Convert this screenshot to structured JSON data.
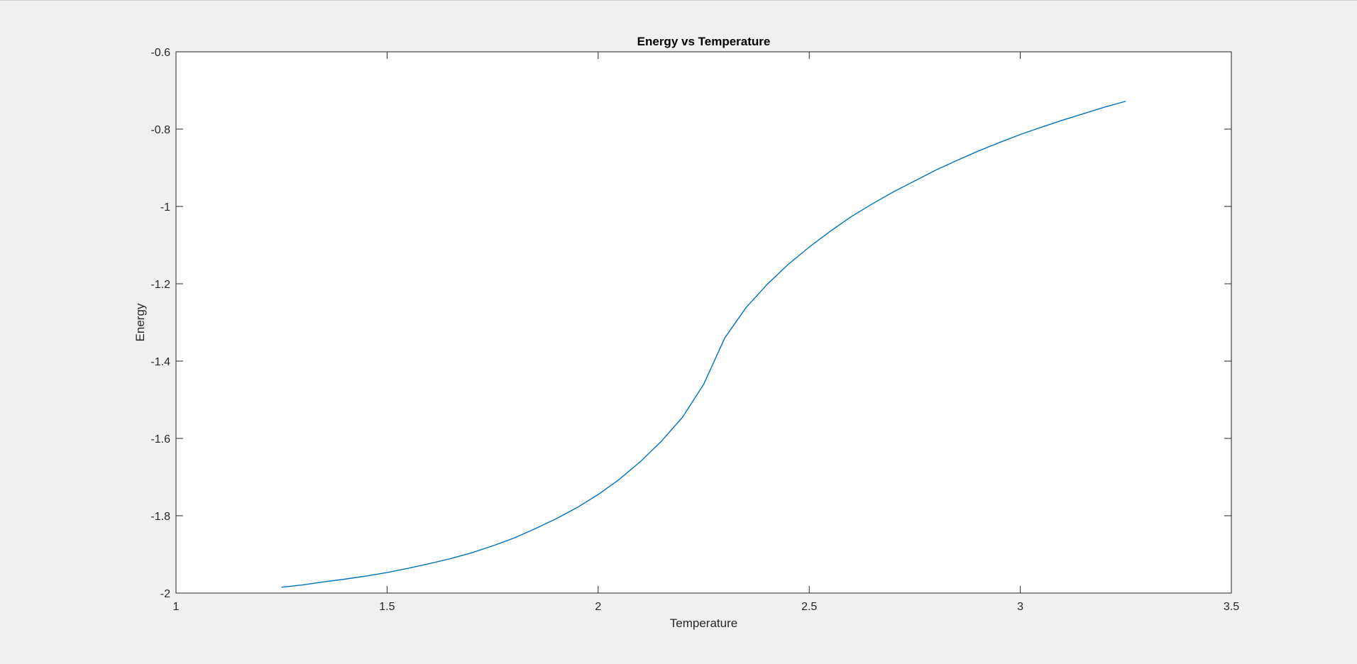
{
  "chart_data": {
    "type": "line",
    "title": "Energy vs Temperature",
    "xlabel": "Temperature",
    "ylabel": "Energy",
    "xlim": [
      1,
      3.5
    ],
    "ylim": [
      -2,
      -0.6
    ],
    "xticks": [
      "1",
      "1.5",
      "2",
      "2.5",
      "3",
      "3.5"
    ],
    "xtick_values": [
      1,
      1.5,
      2,
      2.5,
      3,
      3.5
    ],
    "yticks": [
      "-0.6",
      "-0.8",
      "-1",
      "-1.2",
      "-1.4",
      "-1.6",
      "-1.8",
      "-2"
    ],
    "ytick_values": [
      -0.6,
      -0.8,
      -1,
      -1.2,
      -1.4,
      -1.6,
      -1.8,
      -2
    ],
    "grid": false,
    "series": [
      {
        "color": "#0072bd",
        "x": [
          1.25,
          1.3,
          1.35,
          1.4,
          1.45,
          1.5,
          1.55,
          1.6,
          1.65,
          1.7,
          1.75,
          1.8,
          1.85,
          1.9,
          1.95,
          2.0,
          2.05,
          2.1,
          2.15,
          2.2,
          2.25,
          2.3,
          2.35,
          2.4,
          2.45,
          2.5,
          2.55,
          2.6,
          2.65,
          2.7,
          2.75,
          2.8,
          2.85,
          2.9,
          2.95,
          3.0,
          3.05,
          3.1,
          3.15,
          3.2,
          3.25
        ],
        "values": [
          -1.985,
          -1.979,
          -1.971,
          -1.964,
          -1.956,
          -1.947,
          -1.936,
          -1.924,
          -1.911,
          -1.896,
          -1.878,
          -1.858,
          -1.834,
          -1.808,
          -1.779,
          -1.745,
          -1.706,
          -1.66,
          -1.607,
          -1.545,
          -1.46,
          -1.34,
          -1.262,
          -1.202,
          -1.15,
          -1.105,
          -1.064,
          -1.026,
          -0.993,
          -0.962,
          -0.934,
          -0.906,
          -0.881,
          -0.857,
          -0.835,
          -0.814,
          -0.795,
          -0.777,
          -0.76,
          -0.743,
          -0.728
        ]
      }
    ]
  }
}
